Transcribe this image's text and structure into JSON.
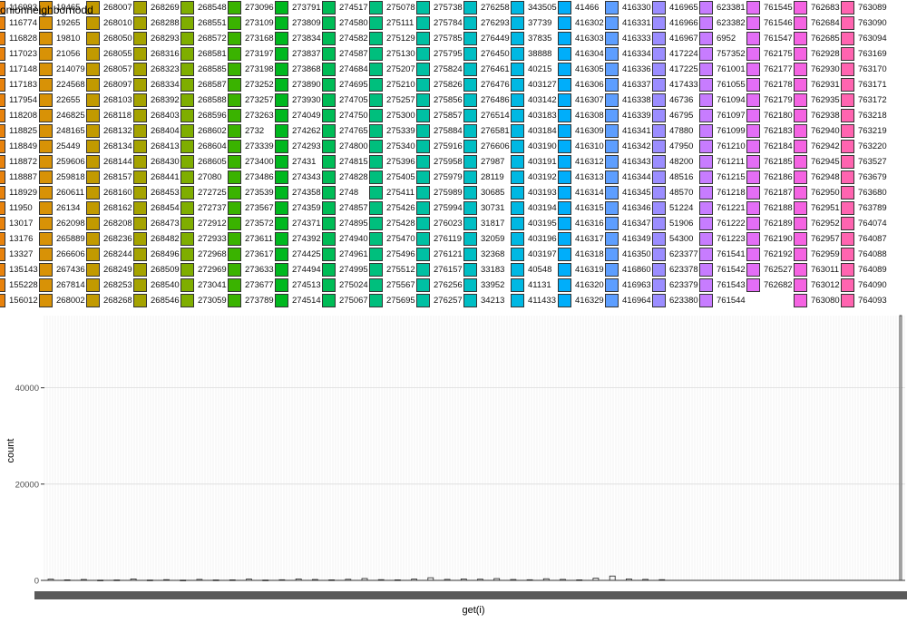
{
  "legend": {
    "title": "onionneighbornodd",
    "columns": [
      {
        "color": "#e8820c",
        "labels": [
          "116993",
          "116774",
          "116828",
          "117023",
          "117148",
          "117183",
          "117954",
          "118208",
          "118825",
          "118849",
          "118872",
          "118887",
          "118929",
          "11950",
          "13017",
          "13176",
          "13327",
          "135143",
          "155228",
          "156012"
        ]
      },
      {
        "color": "#d89206",
        "labels": [
          "19465",
          "19265",
          "19810",
          "21056",
          "214079",
          "224568",
          "22655",
          "246825",
          "248165",
          "25449",
          "259606",
          "259818",
          "260611",
          "26134",
          "262098",
          "265889",
          "266606",
          "267436",
          "267814",
          "268002"
        ]
      },
      {
        "color": "#c29a00",
        "labels": [
          "268007",
          "268010",
          "268050",
          "268055",
          "268057",
          "268097",
          "268103",
          "268118",
          "268132",
          "268134",
          "268144",
          "268157",
          "268160",
          "268162",
          "268208",
          "268236",
          "268244",
          "268249",
          "268253",
          "268268"
        ]
      },
      {
        "color": "#a5a300",
        "labels": [
          "268269",
          "268288",
          "268293",
          "268316",
          "268323",
          "268334",
          "268392",
          "268403",
          "268404",
          "268413",
          "268430",
          "268441",
          "268453",
          "268454",
          "268473",
          "268482",
          "268496",
          "268509",
          "268540",
          "268546"
        ]
      },
      {
        "color": "#7fae00",
        "labels": [
          "268548",
          "268551",
          "268572",
          "268581",
          "268585",
          "268587",
          "268588",
          "268596",
          "268602",
          "268604",
          "268605",
          "27080",
          "272725",
          "272737",
          "272912",
          "272933",
          "272968",
          "272969",
          "273041",
          "273059"
        ]
      },
      {
        "color": "#3ab300",
        "labels": [
          "273096",
          "273109",
          "273168",
          "273197",
          "273198",
          "273252",
          "273257",
          "273263",
          "2732",
          "273339",
          "273400",
          "273486",
          "273539",
          "273567",
          "273572",
          "273611",
          "273617",
          "273633",
          "273677",
          "273789"
        ]
      },
      {
        "color": "#00b81f",
        "labels": [
          "273791",
          "273809",
          "273834",
          "273837",
          "273868",
          "273890",
          "273930",
          "274049",
          "274262",
          "274293",
          "27431",
          "274343",
          "274358",
          "274359",
          "274371",
          "274392",
          "274425",
          "274494",
          "274513",
          "274514"
        ]
      },
      {
        "color": "#00bc56",
        "labels": [
          "274517",
          "274580",
          "274582",
          "274587",
          "274684",
          "274695",
          "274705",
          "274750",
          "274765",
          "274800",
          "274815",
          "274828",
          "2748",
          "274857",
          "274895",
          "274940",
          "274961",
          "274995",
          "275024",
          "275067"
        ]
      },
      {
        "color": "#00bf7d",
        "labels": [
          "275078",
          "275111",
          "275129",
          "275130",
          "275207",
          "275210",
          "275257",
          "275300",
          "275339",
          "275340",
          "275396",
          "275405",
          "275411",
          "275426",
          "275428",
          "275470",
          "275496",
          "275512",
          "275567",
          "275695"
        ]
      },
      {
        "color": "#00c0a3",
        "labels": [
          "275738",
          "275784",
          "275785",
          "275795",
          "275824",
          "275826",
          "275856",
          "275857",
          "275884",
          "275916",
          "275958",
          "275979",
          "275989",
          "275994",
          "276023",
          "276119",
          "276121",
          "276157",
          "276256",
          "276257"
        ]
      },
      {
        "color": "#00bec4",
        "labels": [
          "276258",
          "276293",
          "276449",
          "276450",
          "276461",
          "276476",
          "276486",
          "276514",
          "276581",
          "276606",
          "27987",
          "28119",
          "30685",
          "30731",
          "31817",
          "32059",
          "32368",
          "33183",
          "33952",
          "34213"
        ]
      },
      {
        "color": "#00b8e3",
        "labels": [
          "343505",
          "37739",
          "37835",
          "38888",
          "40215",
          "403127",
          "403142",
          "403183",
          "403184",
          "403190",
          "403191",
          "403192",
          "403193",
          "403194",
          "403195",
          "403196",
          "403197",
          "40548",
          "41131",
          "411433"
        ]
      },
      {
        "color": "#00aefa",
        "labels": [
          "41466",
          "416302",
          "416303",
          "416304",
          "416305",
          "416306",
          "416307",
          "416308",
          "416309",
          "416310",
          "416312",
          "416313",
          "416314",
          "416315",
          "416316",
          "416317",
          "416318",
          "416319",
          "416320",
          "416329"
        ]
      },
      {
        "color": "#5d9eff",
        "labels": [
          "416330",
          "416331",
          "416333",
          "416334",
          "416336",
          "416337",
          "416338",
          "416339",
          "416341",
          "416342",
          "416343",
          "416344",
          "416345",
          "416346",
          "416347",
          "416349",
          "416350",
          "416860",
          "416963",
          "416964"
        ]
      },
      {
        "color": "#9b8dff",
        "labels": [
          "416965",
          "416966",
          "416967",
          "417224",
          "417225",
          "417433",
          "46736",
          "46795",
          "47880",
          "47950",
          "48200",
          "48516",
          "48570",
          "51224",
          "51906",
          "54300",
          "623377",
          "623378",
          "623379",
          "623380"
        ]
      },
      {
        "color": "#c77cff",
        "labels": [
          "623381",
          "623382",
          "6952",
          "757352",
          "761001",
          "761055",
          "761094",
          "761097",
          "761099",
          "761210",
          "761211",
          "761215",
          "761218",
          "761221",
          "761222",
          "761223",
          "761541",
          "761542",
          "761543",
          "761544"
        ]
      },
      {
        "color": "#e36ef6",
        "labels": [
          "761545",
          "761546",
          "761547",
          "762175",
          "762177",
          "762178",
          "762179",
          "762180",
          "762183",
          "762184",
          "762185",
          "762186",
          "762187",
          "762188",
          "762189",
          "762190",
          "762192",
          "762527",
          "762682"
        ]
      },
      {
        "color": "#f563e2",
        "labels": [
          "762683",
          "762684",
          "762685",
          "762928",
          "762930",
          "762931",
          "762935",
          "762938",
          "762940",
          "762942",
          "762945",
          "762948",
          "762950",
          "762951",
          "762952",
          "762957",
          "762959",
          "763011",
          "763012",
          "763080"
        ]
      },
      {
        "color": "#ff64b0",
        "labels": [
          "763089",
          "763090",
          "763094",
          "763169",
          "763170",
          "763171",
          "763172",
          "763218",
          "763219",
          "763220",
          "763527",
          "763679",
          "763680",
          "763789",
          "764074",
          "764087",
          "764088",
          "764089",
          "764090",
          "764093"
        ]
      }
    ]
  },
  "chart_data": {
    "type": "bar",
    "title": "",
    "xlabel": "get(i)",
    "ylabel": "count",
    "ylim": [
      0,
      55000
    ],
    "yticks": [
      0,
      20000,
      40000
    ],
    "ytick_labels": [
      "0",
      "20000",
      "40000"
    ],
    "grid": true,
    "legend_position": "top",
    "bars": [
      {
        "x": 1,
        "count": 240
      },
      {
        "x": 2,
        "count": 120
      },
      {
        "x": 3,
        "count": 180
      },
      {
        "x": 4,
        "count": 60
      },
      {
        "x": 5,
        "count": 100
      },
      {
        "x": 6,
        "count": 300
      },
      {
        "x": 7,
        "count": 80
      },
      {
        "x": 8,
        "count": 150
      },
      {
        "x": 9,
        "count": 60
      },
      {
        "x": 10,
        "count": 200
      },
      {
        "x": 11,
        "count": 90
      },
      {
        "x": 12,
        "count": 120
      },
      {
        "x": 13,
        "count": 260
      },
      {
        "x": 14,
        "count": 80
      },
      {
        "x": 15,
        "count": 140
      },
      {
        "x": 16,
        "count": 300
      },
      {
        "x": 17,
        "count": 180
      },
      {
        "x": 18,
        "count": 120
      },
      {
        "x": 19,
        "count": 220
      },
      {
        "x": 20,
        "count": 400
      },
      {
        "x": 21,
        "count": 160
      },
      {
        "x": 22,
        "count": 110
      },
      {
        "x": 23,
        "count": 260
      },
      {
        "x": 24,
        "count": 540
      },
      {
        "x": 25,
        "count": 200
      },
      {
        "x": 26,
        "count": 300
      },
      {
        "x": 27,
        "count": 240
      },
      {
        "x": 28,
        "count": 380
      },
      {
        "x": 29,
        "count": 180
      },
      {
        "x": 30,
        "count": 140
      },
      {
        "x": 31,
        "count": 340
      },
      {
        "x": 32,
        "count": 200
      },
      {
        "x": 33,
        "count": 120
      },
      {
        "x": 34,
        "count": 460
      },
      {
        "x": 35,
        "count": 900
      },
      {
        "x": 36,
        "count": 300
      },
      {
        "x": 37,
        "count": 200
      },
      {
        "x": 38,
        "count": 160
      },
      {
        "x": 39,
        "count": 56000
      }
    ]
  }
}
